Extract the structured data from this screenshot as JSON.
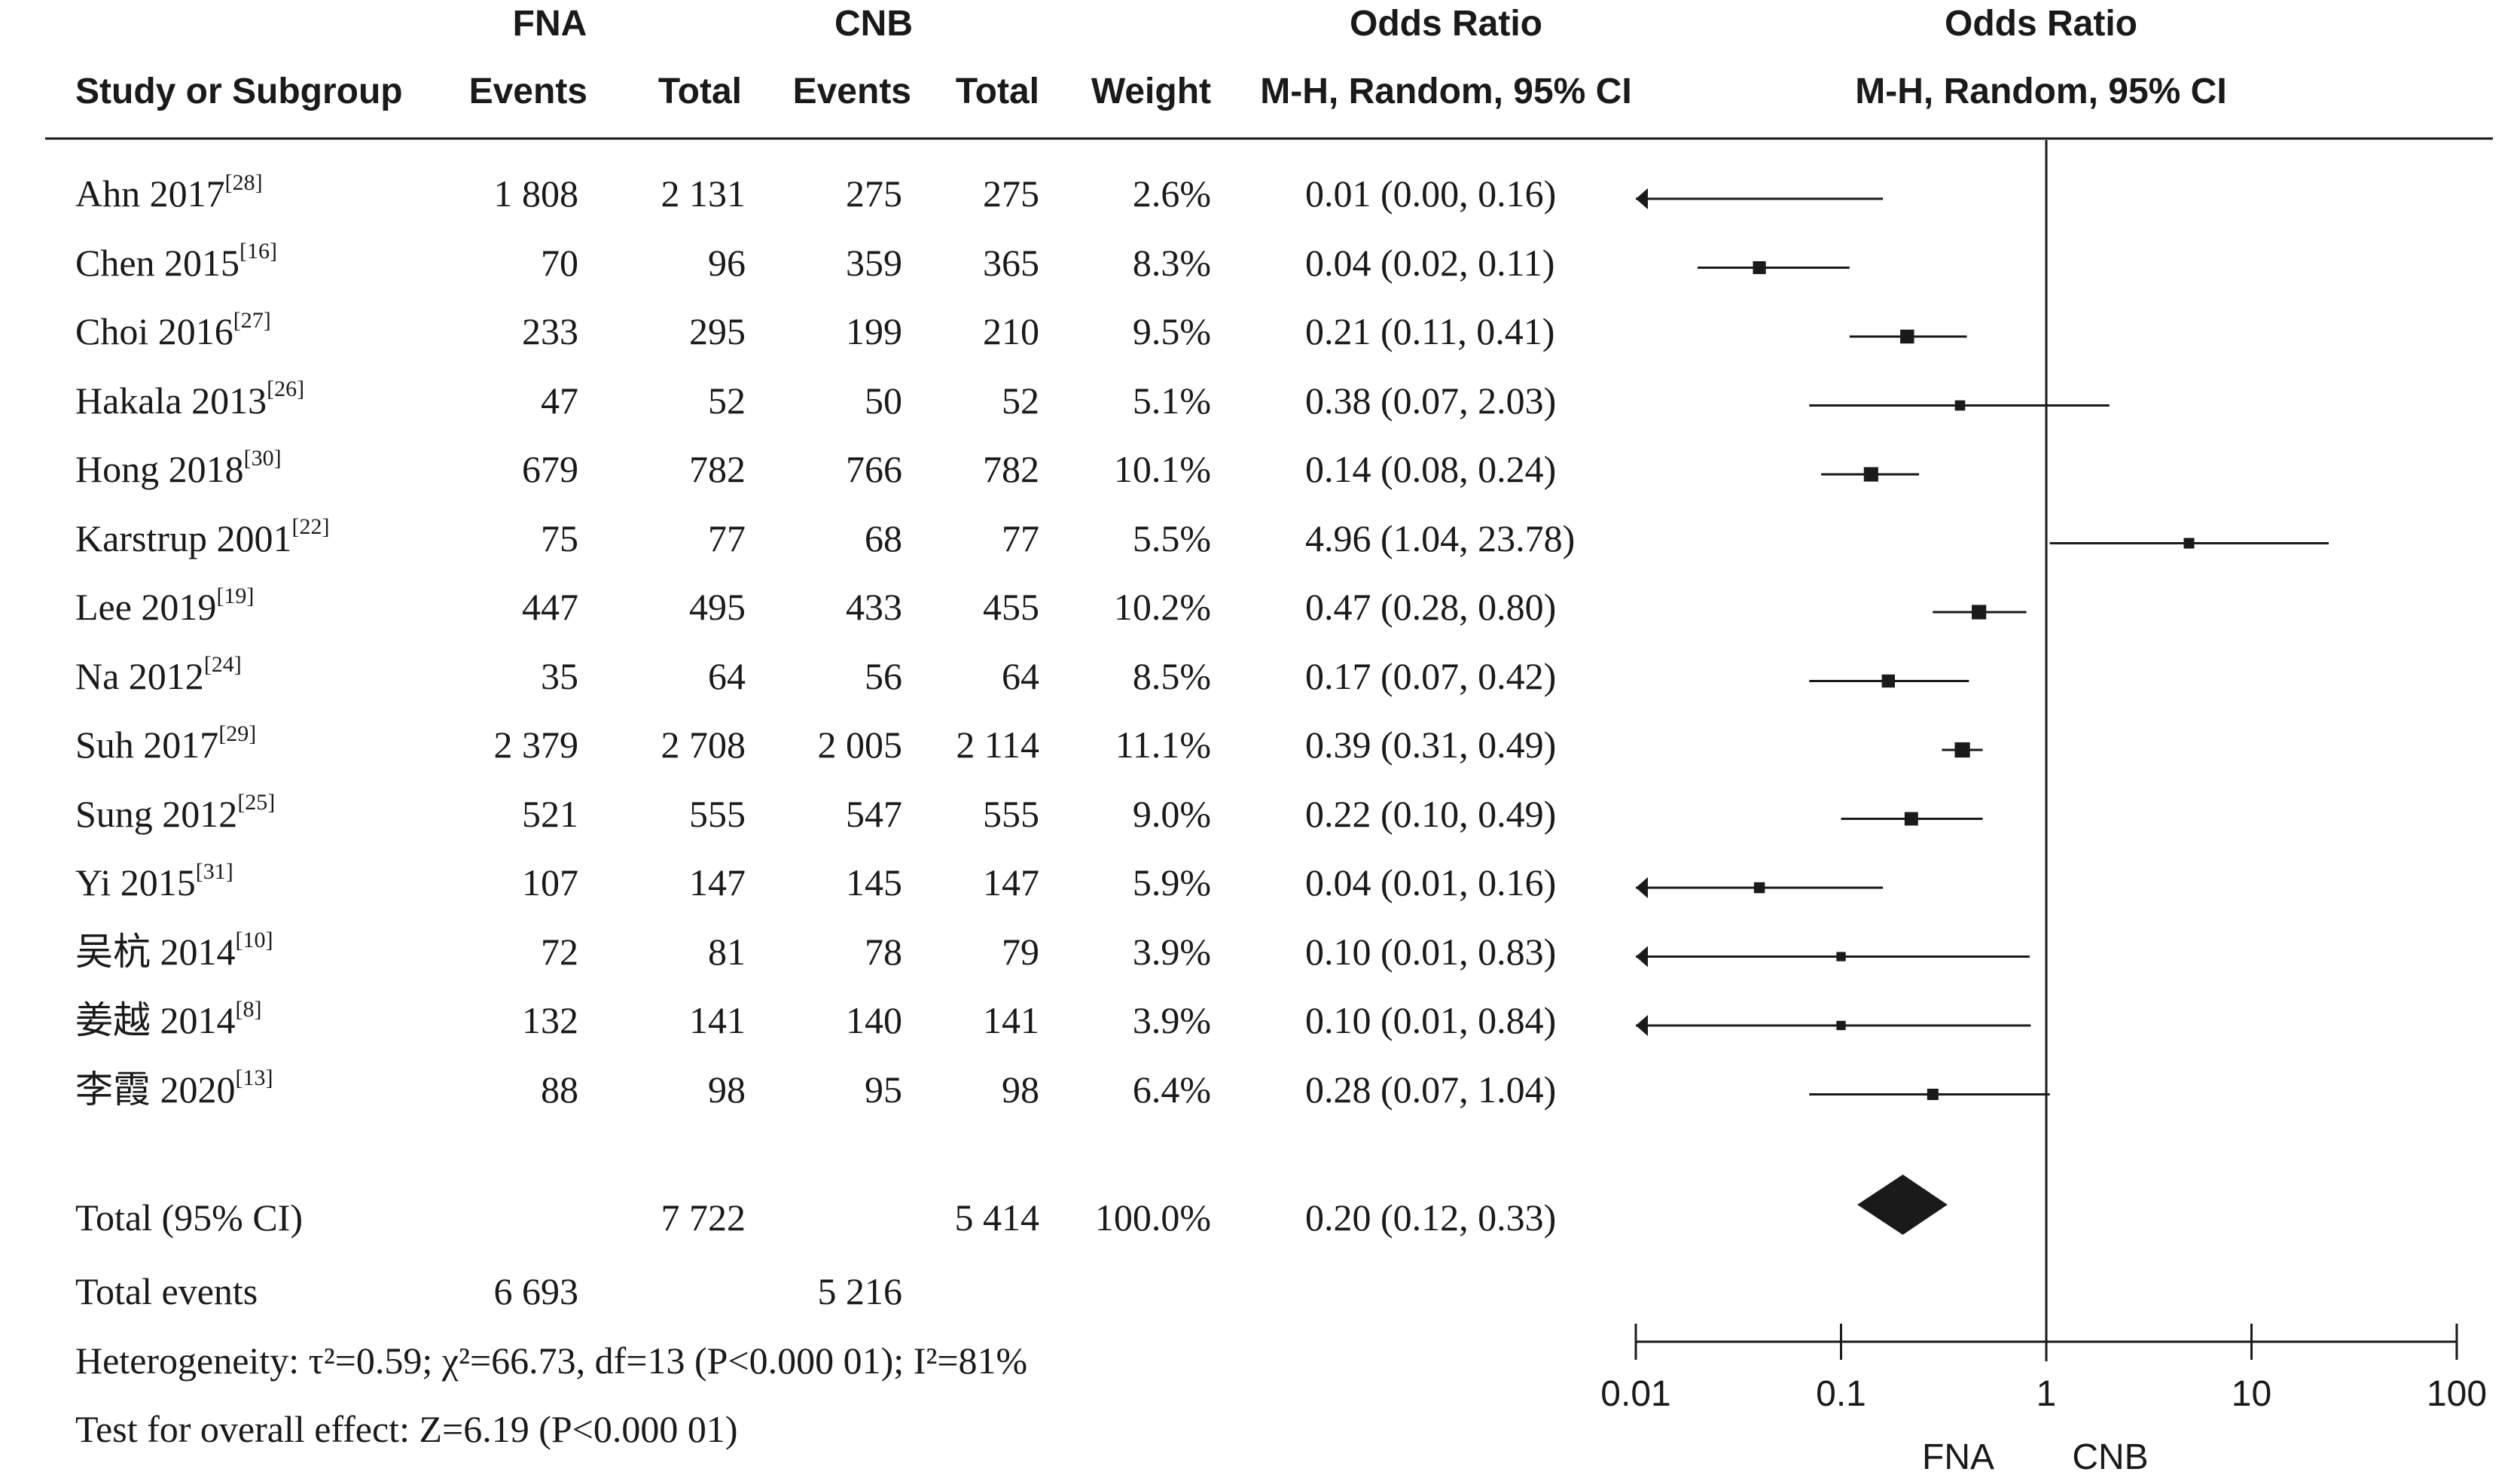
{
  "header": {
    "group1": "FNA",
    "group2": "CNB",
    "study_col": "Study or Subgroup",
    "events": "Events",
    "total": "Total",
    "weight": "Weight",
    "or_title": "Odds Ratio",
    "or_method": "M-H, Random, 95% CI",
    "plot_title": "Odds Ratio",
    "plot_method": "M-H, Random, 95% CI"
  },
  "rows": [
    {
      "name": "Ahn 2017",
      "ref": "[28]",
      "e1": "1 808",
      "t1": "2 131",
      "e2": "275",
      "t2": "275",
      "w": "2.6%",
      "ci": "0.01 (0.00, 0.16)"
    },
    {
      "name": "Chen 2015",
      "ref": "[16]",
      "e1": "70",
      "t1": "96",
      "e2": "359",
      "t2": "365",
      "w": "8.3%",
      "ci": "0.04 (0.02, 0.11)"
    },
    {
      "name": "Choi 2016",
      "ref": "[27]",
      "e1": "233",
      "t1": "295",
      "e2": "199",
      "t2": "210",
      "w": "9.5%",
      "ci": "0.21 (0.11, 0.41)"
    },
    {
      "name": "Hakala 2013",
      "ref": "[26]",
      "e1": "47",
      "t1": "52",
      "e2": "50",
      "t2": "52",
      "w": "5.1%",
      "ci": "0.38 (0.07, 2.03)"
    },
    {
      "name": "Hong 2018",
      "ref": "[30]",
      "e1": "679",
      "t1": "782",
      "e2": "766",
      "t2": "782",
      "w": "10.1%",
      "ci": "0.14 (0.08, 0.24)"
    },
    {
      "name": "Karstrup 2001",
      "ref": "[22]",
      "e1": "75",
      "t1": "77",
      "e2": "68",
      "t2": "77",
      "w": "5.5%",
      "ci": "4.96 (1.04, 23.78)"
    },
    {
      "name": "Lee 2019",
      "ref": "[19]",
      "e1": "447",
      "t1": "495",
      "e2": "433",
      "t2": "455",
      "w": "10.2%",
      "ci": "0.47 (0.28, 0.80)"
    },
    {
      "name": "Na 2012",
      "ref": "[24]",
      "e1": "35",
      "t1": "64",
      "e2": "56",
      "t2": "64",
      "w": "8.5%",
      "ci": "0.17 (0.07, 0.42)"
    },
    {
      "name": "Suh 2017",
      "ref": "[29]",
      "e1": "2 379",
      "t1": "2 708",
      "e2": "2 005",
      "t2": "2 114",
      "w": "11.1%",
      "ci": "0.39 (0.31, 0.49)"
    },
    {
      "name": "Sung 2012",
      "ref": "[25]",
      "e1": "521",
      "t1": "555",
      "e2": "547",
      "t2": "555",
      "w": "9.0%",
      "ci": "0.22 (0.10, 0.49)"
    },
    {
      "name": "Yi 2015",
      "ref": "[31]",
      "e1": "107",
      "t1": "147",
      "e2": "145",
      "t2": "147",
      "w": "5.9%",
      "ci": "0.04 (0.01, 0.16)"
    },
    {
      "name": "吴杭 2014",
      "ref": "[10]",
      "e1": "72",
      "t1": "81",
      "e2": "78",
      "t2": "79",
      "w": "3.9%",
      "ci": "0.10 (0.01, 0.83)"
    },
    {
      "name": "姜越 2014",
      "ref": "[8]",
      "e1": "132",
      "t1": "141",
      "e2": "140",
      "t2": "141",
      "w": "3.9%",
      "ci": "0.10 (0.01, 0.84)"
    },
    {
      "name": "李霞 2020",
      "ref": "[13]",
      "e1": "88",
      "t1": "98",
      "e2": "95",
      "t2": "98",
      "w": "6.4%",
      "ci": "0.28 (0.07, 1.04)"
    }
  ],
  "total": {
    "label": "Total (95% CI)",
    "t1": "7 722",
    "t2": "5 414",
    "w": "100.0%",
    "ci": "0.20 (0.12, 0.33)"
  },
  "total_events": {
    "label": "Total events",
    "e1": "6 693",
    "e2": "5 216"
  },
  "heterogeneity": "Heterogeneity: τ²=0.59; χ²=66.73, df=13 (P<0.000 01); I²=81%",
  "overall_effect": "Test for overall effect: Z=6.19 (P<0.000 01)",
  "axis": {
    "ticks": [
      "0.01",
      "0.1",
      "1",
      "10",
      "100"
    ],
    "favours_left": "FNA",
    "favours_right": "CNB"
  },
  "chart_data": {
    "type": "forest",
    "scale": "log",
    "xlim": [
      0.01,
      100
    ],
    "reference_line": 1,
    "studies": [
      {
        "label": "Ahn 2017",
        "or": 0.01,
        "lo": 0.0,
        "hi": 0.16,
        "weight": 2.6
      },
      {
        "label": "Chen 2015",
        "or": 0.04,
        "lo": 0.02,
        "hi": 0.11,
        "weight": 8.3
      },
      {
        "label": "Choi 2016",
        "or": 0.21,
        "lo": 0.11,
        "hi": 0.41,
        "weight": 9.5
      },
      {
        "label": "Hakala 2013",
        "or": 0.38,
        "lo": 0.07,
        "hi": 2.03,
        "weight": 5.1
      },
      {
        "label": "Hong 2018",
        "or": 0.14,
        "lo": 0.08,
        "hi": 0.24,
        "weight": 10.1
      },
      {
        "label": "Karstrup 2001",
        "or": 4.96,
        "lo": 1.04,
        "hi": 23.78,
        "weight": 5.5
      },
      {
        "label": "Lee 2019",
        "or": 0.47,
        "lo": 0.28,
        "hi": 0.8,
        "weight": 10.2
      },
      {
        "label": "Na 2012",
        "or": 0.17,
        "lo": 0.07,
        "hi": 0.42,
        "weight": 8.5
      },
      {
        "label": "Suh 2017",
        "or": 0.39,
        "lo": 0.31,
        "hi": 0.49,
        "weight": 11.1
      },
      {
        "label": "Sung 2012",
        "or": 0.22,
        "lo": 0.1,
        "hi": 0.49,
        "weight": 9.0
      },
      {
        "label": "Yi 2015",
        "or": 0.04,
        "lo": 0.01,
        "hi": 0.16,
        "weight": 5.9
      },
      {
        "label": "吴杭 2014",
        "or": 0.1,
        "lo": 0.01,
        "hi": 0.83,
        "weight": 3.9
      },
      {
        "label": "姜越 2014",
        "or": 0.1,
        "lo": 0.01,
        "hi": 0.84,
        "weight": 3.9
      },
      {
        "label": "李霞 2020",
        "or": 0.28,
        "lo": 0.07,
        "hi": 1.04,
        "weight": 6.4
      }
    ],
    "pooled": {
      "or": 0.2,
      "lo": 0.12,
      "hi": 0.33
    }
  }
}
